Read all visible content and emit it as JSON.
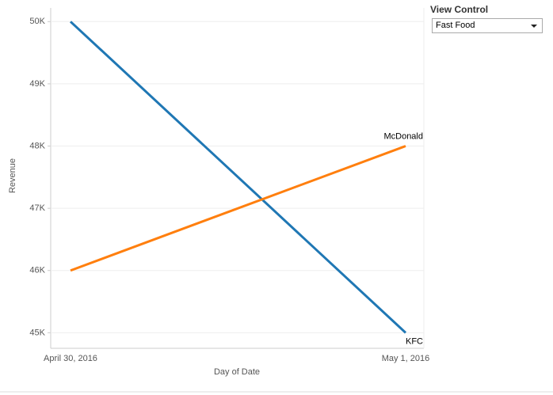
{
  "chart_data": {
    "type": "line",
    "y_label": "Revenue",
    "x_label": "Day of Date",
    "categories": [
      "April 30, 2016",
      "May 1, 2016"
    ],
    "series": [
      {
        "name": "KFC",
        "color": "#1f77b4",
        "values": [
          50000,
          45000
        ]
      },
      {
        "name": "McDonald",
        "color": "#ff7f0e",
        "values": [
          46000,
          48000
        ]
      }
    ],
    "ylim": [
      44750,
      50220
    ],
    "yticks": [
      {
        "value": 45000,
        "label": "45K"
      },
      {
        "value": 46000,
        "label": "46K"
      },
      {
        "value": 47000,
        "label": "47K"
      },
      {
        "value": 48000,
        "label": "48K"
      },
      {
        "value": 49000,
        "label": "49K"
      },
      {
        "value": 50000,
        "label": "50K"
      }
    ],
    "grid": true
  },
  "controls": {
    "title": "View Control",
    "selected": "Fast Food"
  }
}
